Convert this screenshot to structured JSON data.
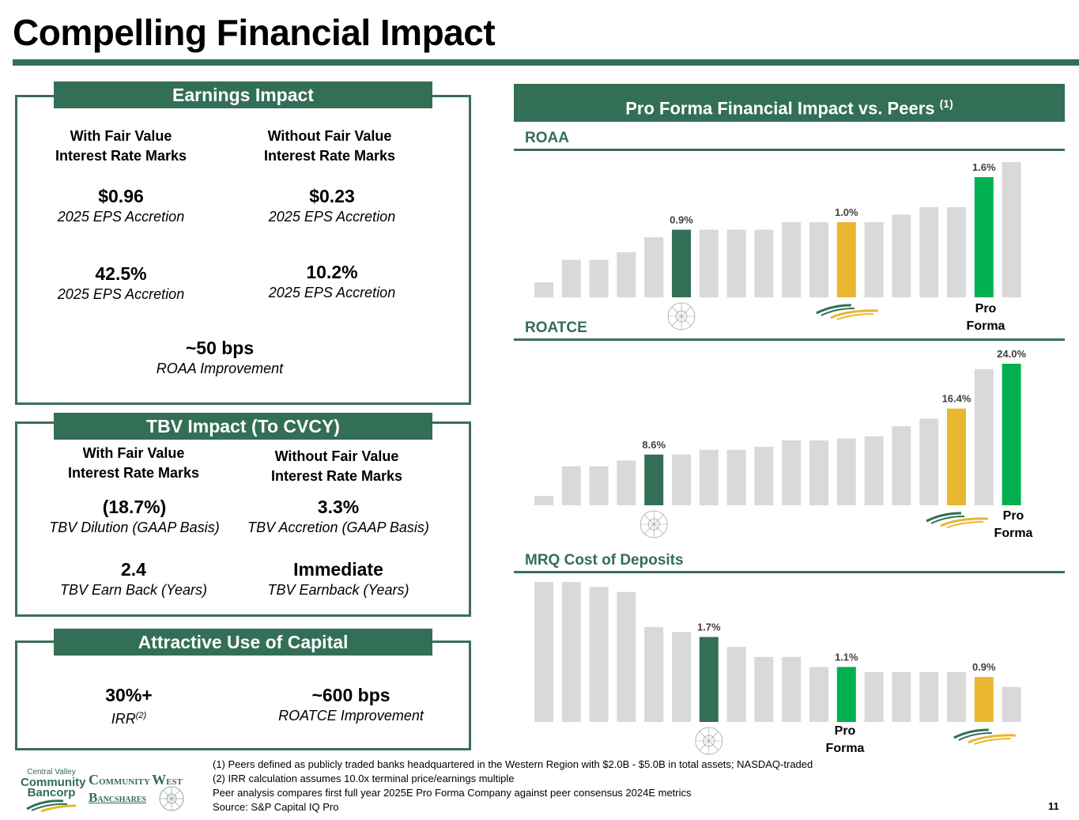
{
  "page": {
    "title": "Compelling Financial Impact",
    "page_number": "11"
  },
  "colors": {
    "brand_dark_green": "#336e56",
    "pro_forma_green": "#00b050",
    "cvcy_gold": "#e8b630",
    "peer_gray": "#d9d9d9"
  },
  "earnings": {
    "header": "Earnings Impact",
    "col_with": "With Fair Value\nInterest Rate Marks",
    "col_with_l1": "With Fair Value",
    "col_with_l2": "Interest Rate Marks",
    "col_without_l1": "Without Fair Value",
    "col_without_l2": "Interest Rate Marks",
    "eps_with_value": "$0.96",
    "eps_with_label": "2025 EPS Accretion",
    "eps_without_value": "$0.23",
    "eps_without_label": "2025 EPS Accretion",
    "pct_with_value": "42.5%",
    "pct_with_label": "2025 EPS Accretion",
    "pct_without_value": "10.2%",
    "pct_without_label": "2025 EPS Accretion",
    "roaa_value": "~50 bps",
    "roaa_label": "ROAA Improvement"
  },
  "tbv": {
    "header": "TBV Impact (To CVCY)",
    "col_with_l1": "With Fair Value",
    "col_with_l2": "Interest Rate Marks",
    "col_without_l1": "Without Fair Value",
    "col_without_l2": "Interest Rate Marks",
    "dilution_value": "(18.7%)",
    "dilution_label": "TBV Dilution (GAAP Basis)",
    "accretion_value": "3.3%",
    "accretion_label": "TBV Accretion (GAAP Basis)",
    "earnback_value": "2.4",
    "earnback_label": "TBV Earn Back (Years)",
    "earnback2_value": "Immediate",
    "earnback2_label": "TBV Earnback (Years)"
  },
  "capital": {
    "header": "Attractive Use of Capital",
    "irr_value": "30%+",
    "irr_label": "IRR",
    "irr_footnote": "(2)",
    "roatce_value": "~600 bps",
    "roatce_label": "ROATCE Improvement"
  },
  "right": {
    "header": "Pro Forma Financial Impact vs. Peers",
    "header_footnote": "(1)",
    "pro_forma_l1": "Pro",
    "pro_forma_l2": "Forma"
  },
  "chart_data": [
    {
      "type": "bar",
      "title": "ROAA",
      "categories": [
        "Peer 1",
        "Peer 2",
        "Peer 3",
        "Peer 4",
        "Peer 5",
        "CWBC",
        "Peer 7",
        "Peer 8",
        "Peer 9",
        "Peer 10",
        "Peer 11",
        "CVCY",
        "Peer 13",
        "Peer 14",
        "Peer 15",
        "Peer 16",
        "Pro Forma",
        "Peer 18"
      ],
      "values": [
        0.2,
        0.5,
        0.5,
        0.6,
        0.8,
        0.9,
        0.9,
        0.9,
        0.9,
        1.0,
        1.0,
        1.0,
        1.0,
        1.1,
        1.2,
        1.2,
        1.6,
        1.8
      ],
      "highlight": {
        "CWBC": "dark_green",
        "CVCY": "gold",
        "Pro Forma": "green"
      },
      "data_labels": {
        "CWBC": "0.9%",
        "CVCY": "1.0%",
        "Pro Forma": "1.6%"
      },
      "unit": "%",
      "ylim": [
        0,
        1.8
      ],
      "xlabel": "",
      "ylabel": "",
      "grid": false
    },
    {
      "type": "bar",
      "title": "ROATCE",
      "categories": [
        "Peer 1",
        "Peer 2",
        "Peer 3",
        "Peer 4",
        "CWBC",
        "Peer 6",
        "Peer 7",
        "Peer 8",
        "Peer 9",
        "Peer 10",
        "Peer 11",
        "Peer 12",
        "Peer 13",
        "Peer 14",
        "Peer 15",
        "CVCY",
        "Peer 17",
        "Pro Forma"
      ],
      "values": [
        1.6,
        6.6,
        6.6,
        7.6,
        8.6,
        8.6,
        9.4,
        9.4,
        9.9,
        11.0,
        11.0,
        11.3,
        11.7,
        13.4,
        14.7,
        16.4,
        23.1,
        24.0
      ],
      "highlight": {
        "CWBC": "dark_green",
        "CVCY": "gold",
        "Pro Forma": "green"
      },
      "data_labels": {
        "CWBC": "8.6%",
        "CVCY": "16.4%",
        "Pro Forma": "24.0%"
      },
      "unit": "%",
      "ylim": [
        0,
        24.0
      ],
      "xlabel": "",
      "ylabel": "",
      "grid": false
    },
    {
      "type": "bar",
      "title": "MRQ Cost of Deposits",
      "categories": [
        "Peer 1",
        "Peer 2",
        "Peer 3",
        "Peer 4",
        "Peer 5",
        "Peer 6",
        "CWBC",
        "Peer 8",
        "Peer 9",
        "Peer 10",
        "Peer 11",
        "Pro Forma",
        "Peer 13",
        "Peer 14",
        "Peer 15",
        "Peer 16",
        "CVCY",
        "Peer 18"
      ],
      "values": [
        2.8,
        2.8,
        2.7,
        2.6,
        1.9,
        1.8,
        1.7,
        1.5,
        1.3,
        1.3,
        1.1,
        1.1,
        1.0,
        1.0,
        1.0,
        1.0,
        0.9,
        0.7
      ],
      "highlight": {
        "CWBC": "dark_green",
        "CVCY": "gold",
        "Pro Forma": "green"
      },
      "data_labels": {
        "CWBC": "1.7%",
        "Pro Forma": "1.1%",
        "CVCY": "0.9%"
      },
      "unit": "%",
      "ylim": [
        0,
        2.8
      ],
      "xlabel": "",
      "ylabel": "",
      "grid": false
    }
  ],
  "footnotes": [
    "(1) Peers defined as publicly traded banks headquartered in the Western Region with $2.0B - $5.0B in total assets; NASDAQ-traded",
    "(2) IRR calculation assumes 10.0x terminal price/earnings multiple",
    "Peer analysis compares first full year 2025E Pro Forma Company against peer consensus 2024E metrics",
    "Source: S&P Capital IQ Pro"
  ],
  "logos": {
    "cvcb_l1": "Central Valley",
    "cvcb_l2": "Community",
    "cvcb_l3": "Bancorp",
    "cwbc_c": "C",
    "cwbc_ommunity": "OMMUNITY",
    "cwbc_w": "W",
    "cwbc_est": "EST",
    "cwbc_b": "B",
    "cwbc_ancshares": "ANCSHARES"
  }
}
